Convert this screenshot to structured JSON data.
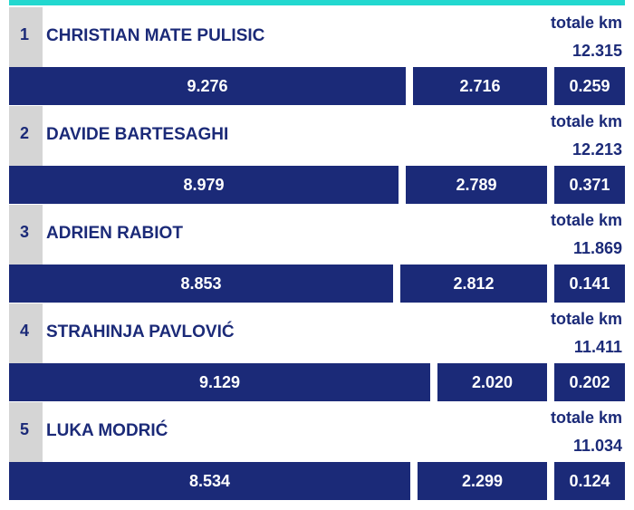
{
  "total_label": "totale km",
  "players": [
    {
      "rank": "1",
      "name": "CHRISTIAN MATE PULISIC",
      "total": "12.315",
      "split": [
        "9.276",
        "2.716",
        "0.259"
      ]
    },
    {
      "rank": "2",
      "name": "DAVIDE BARTESAGHI",
      "total": "12.213",
      "split": [
        "8.979",
        "2.789",
        "0.371"
      ]
    },
    {
      "rank": "3",
      "name": "ADRIEN RABIOT",
      "total": "11.869",
      "split": [
        "8.853",
        "2.812",
        "0.141"
      ]
    },
    {
      "rank": "4",
      "name": "STRAHINJA PAVLOVIĆ",
      "total": "11.411",
      "split": [
        "9.129",
        "2.020",
        "0.202"
      ]
    },
    {
      "rank": "5",
      "name": "LUKA MODRIĆ",
      "total": "11.034",
      "split": [
        "8.534",
        "2.299",
        "0.124"
      ]
    }
  ],
  "colors": {
    "accent": "#22d8cf",
    "navy": "#1b2a78",
    "rank_bg": "#d5d5d5"
  }
}
